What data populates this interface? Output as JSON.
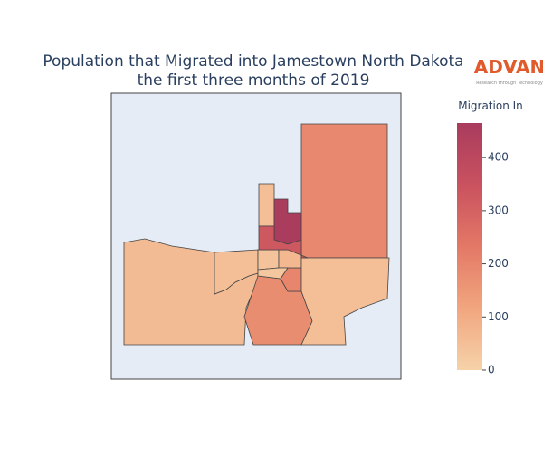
{
  "chart_data": {
    "type": "choropleth",
    "title": [
      "Population that Migrated into Jamestown North Dakota",
      "the first three months of 2019"
    ],
    "logo": {
      "name": "ADVAN",
      "tagline": "Research through Technology"
    },
    "colorbar_title": "Migration In",
    "values": [
      190,
      60,
      50,
      180,
      200,
      40,
      70,
      30,
      50,
      50,
      460,
      330
    ],
    "zlim": [
      0,
      465
    ],
    "zticks": [
      0,
      100,
      200,
      300,
      400
    ],
    "colorscale": [
      "#f6d2a9",
      "#f1a67f",
      "#e37866",
      "#c9525f",
      "#a93b5e"
    ]
  }
}
